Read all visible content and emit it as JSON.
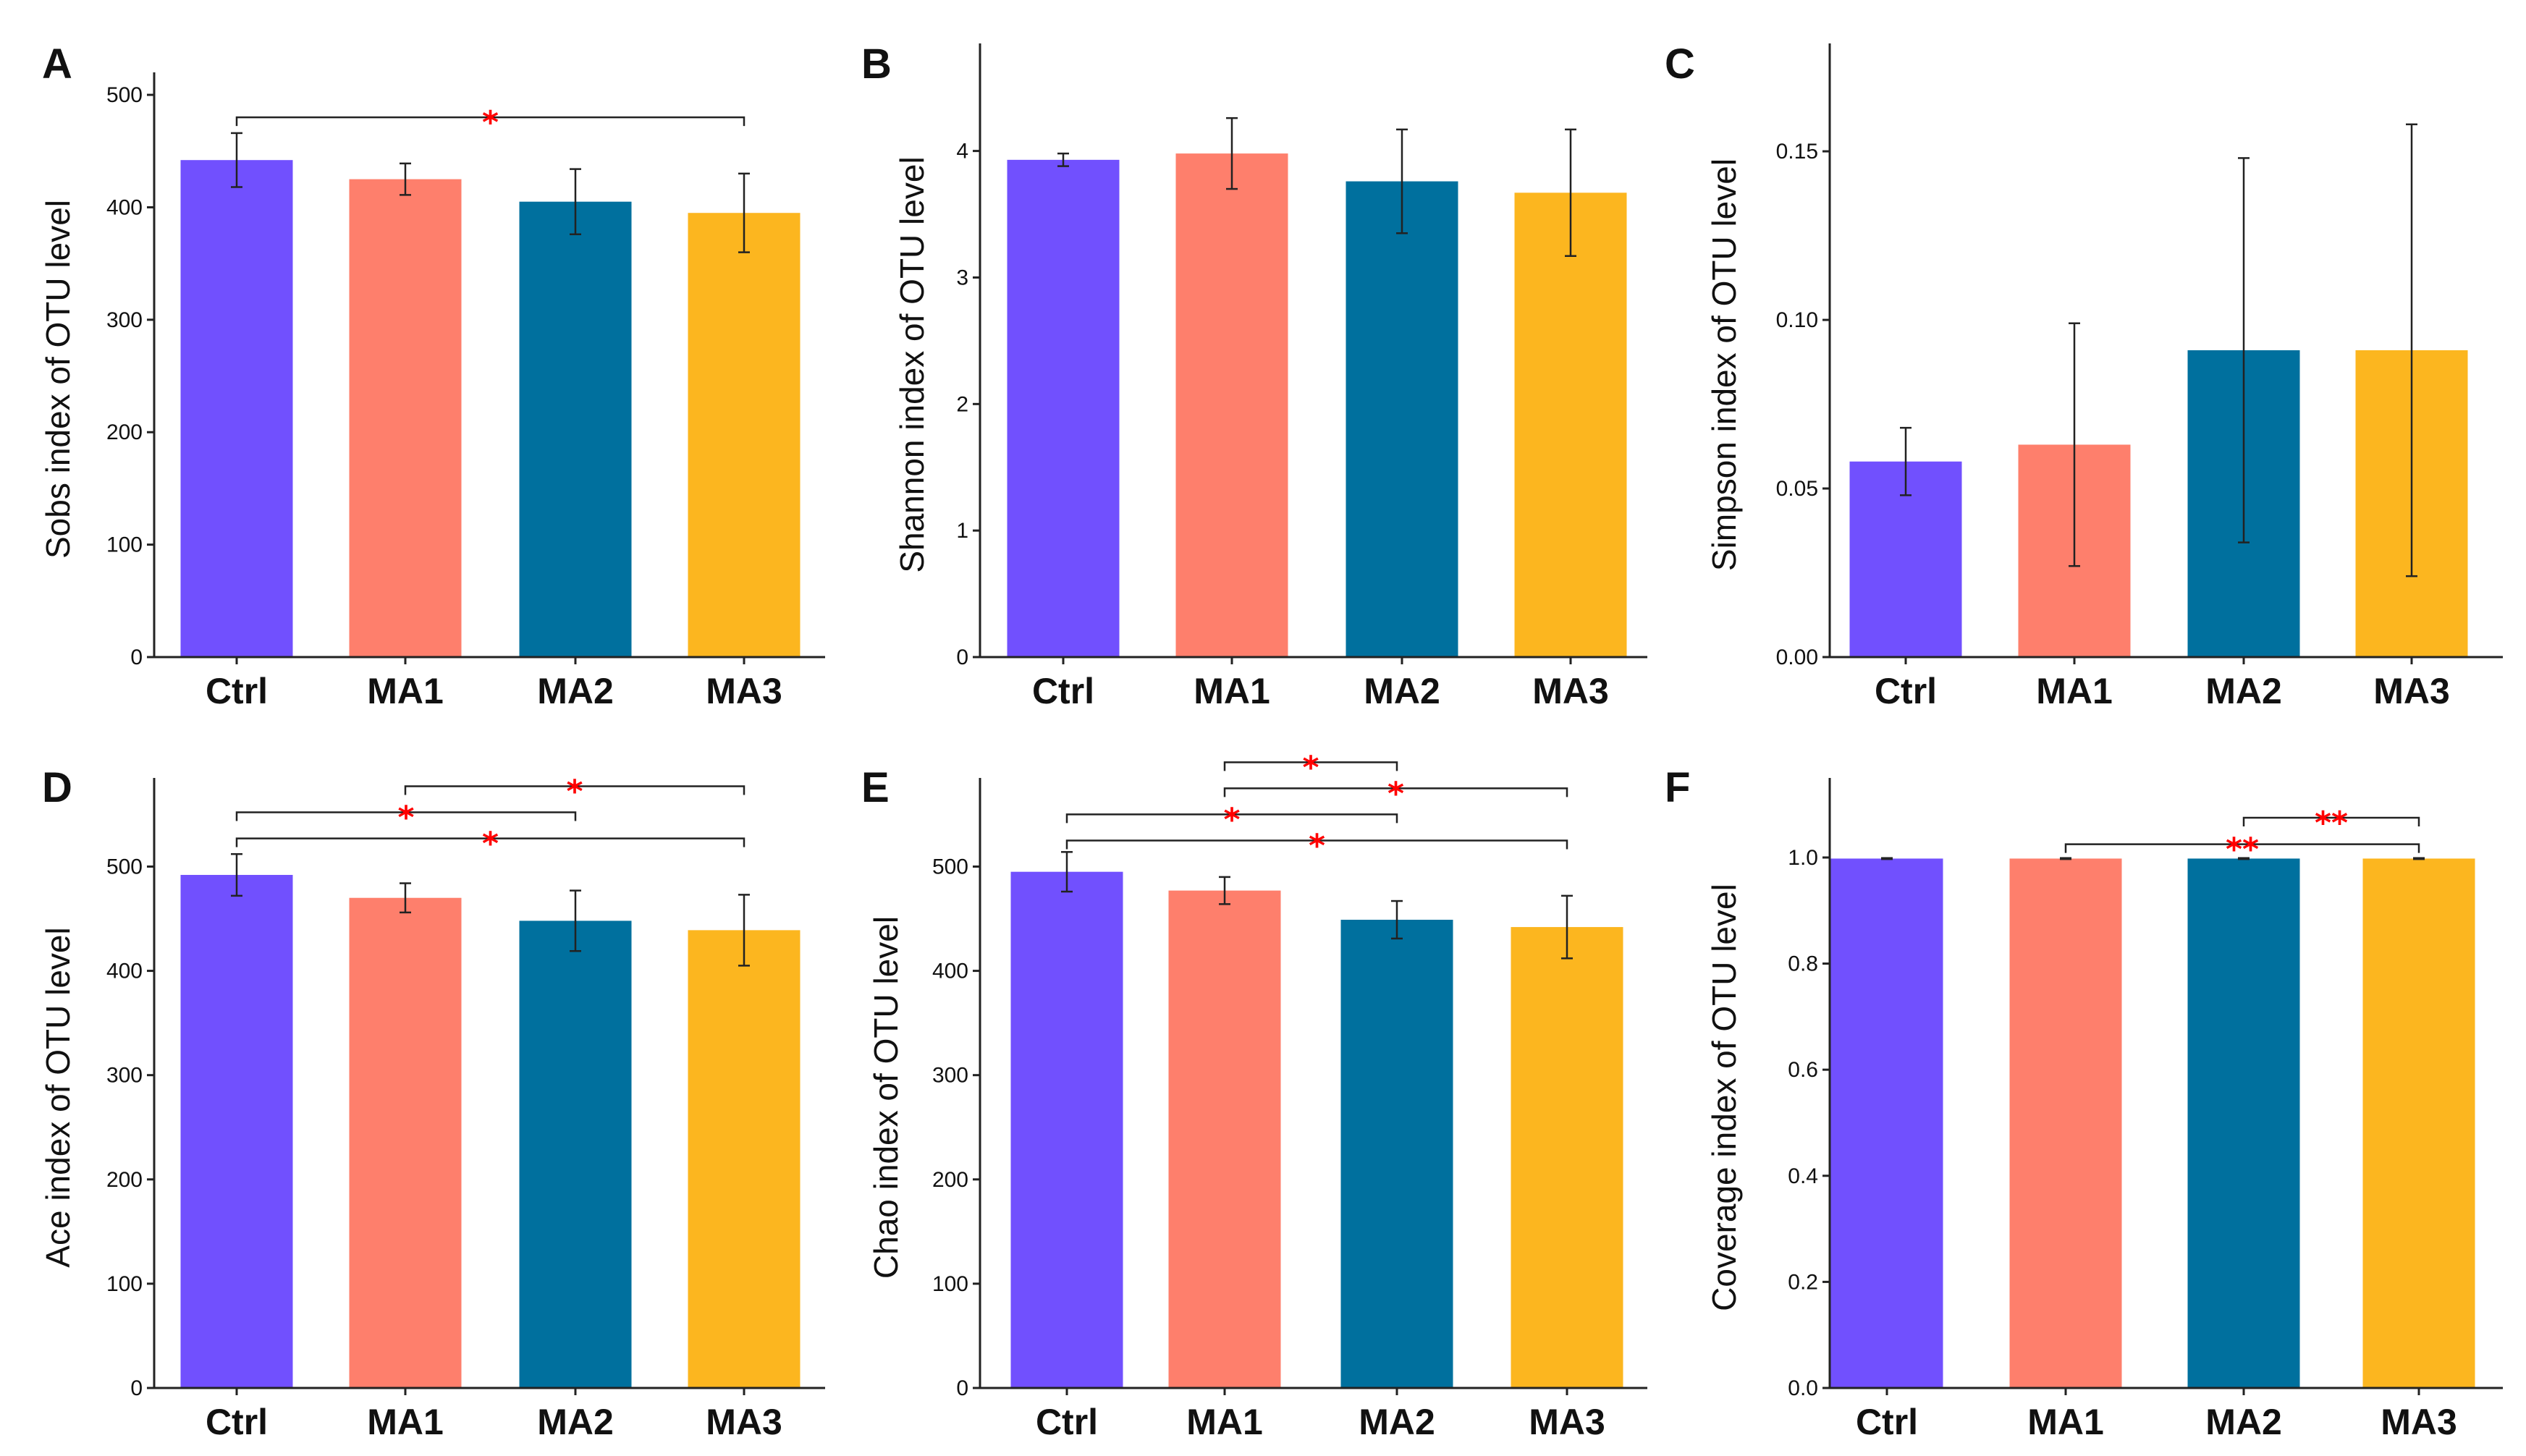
{
  "figure": {
    "star_color": "#ff0000"
  },
  "chart_data": [
    {
      "type": "bar",
      "panel": "A",
      "ylabel": "Sobs index of OTU level",
      "categories": [
        "Ctrl",
        "MA1",
        "MA2",
        "MA3"
      ],
      "values": [
        442,
        425,
        405,
        395
      ],
      "errors": [
        24,
        14,
        29,
        35
      ],
      "colors": [
        "#7150fe",
        "#fe7f6c",
        "#00709e",
        "#fcb61f"
      ],
      "ylim": [
        0,
        520
      ],
      "yticks": [
        0,
        100,
        200,
        300,
        400,
        500
      ],
      "ytick_labels": [
        "0",
        "100",
        "200",
        "300",
        "400",
        "500"
      ],
      "significance": [
        {
          "from": 0,
          "to": 3,
          "level": 480,
          "label": "*"
        }
      ]
    },
    {
      "type": "bar",
      "panel": "B",
      "ylabel": "Shannon index of OTU level",
      "categories": [
        "Ctrl",
        "MA1",
        "MA2",
        "MA3"
      ],
      "values": [
        3.93,
        3.98,
        3.76,
        3.67
      ],
      "errors": [
        0.05,
        0.28,
        0.41,
        0.5
      ],
      "colors": [
        "#7150fe",
        "#fe7f6c",
        "#00709e",
        "#fcb61f"
      ],
      "ylim": [
        0,
        4.85
      ],
      "yticks": [
        0,
        1,
        2,
        3,
        4
      ],
      "ytick_labels": [
        "0",
        "1",
        "2",
        "3",
        "4"
      ],
      "significance": []
    },
    {
      "type": "bar",
      "panel": "C",
      "ylabel": "Simpson index of OTU level",
      "categories": [
        "Ctrl",
        "MA1",
        "MA2",
        "MA3"
      ],
      "values": [
        0.058,
        0.063,
        0.091,
        0.091
      ],
      "errors": [
        0.01,
        0.036,
        0.057,
        0.067
      ],
      "colors": [
        "#7150fe",
        "#fe7f6c",
        "#00709e",
        "#fcb61f"
      ],
      "ylim": [
        0,
        0.182
      ],
      "yticks": [
        0,
        0.05,
        0.1,
        0.15
      ],
      "ytick_labels": [
        "0.00",
        "0.05",
        "0.10",
        "0.15"
      ],
      "significance": []
    },
    {
      "type": "bar",
      "panel": "D",
      "ylabel": "Ace index of OTU level",
      "categories": [
        "Ctrl",
        "MA1",
        "MA2",
        "MA3"
      ],
      "values": [
        492,
        470,
        448,
        439
      ],
      "errors": [
        20,
        14,
        29,
        34
      ],
      "colors": [
        "#7150fe",
        "#fe7f6c",
        "#00709e",
        "#fcb61f"
      ],
      "ylim": [
        0,
        585
      ],
      "yticks": [
        0,
        100,
        200,
        300,
        400,
        500
      ],
      "ytick_labels": [
        "0",
        "100",
        "200",
        "300",
        "400",
        "500"
      ],
      "significance": [
        {
          "from": 1,
          "to": 3,
          "level": 577,
          "label": "*"
        },
        {
          "from": 0,
          "to": 2,
          "level": 552,
          "label": "*"
        },
        {
          "from": 0,
          "to": 3,
          "level": 527,
          "label": "*"
        }
      ]
    },
    {
      "type": "bar",
      "panel": "E",
      "ylabel": "Chao index of OTU level",
      "categories": [
        "Ctrl",
        "MA1",
        "MA2",
        "MA3"
      ],
      "values": [
        495,
        477,
        449,
        442
      ],
      "errors": [
        19,
        13,
        18,
        30
      ],
      "colors": [
        "#7150fe",
        "#fe7f6c",
        "#00709e",
        "#fcb61f"
      ],
      "ylim": [
        0,
        585
      ],
      "yticks": [
        0,
        100,
        200,
        300,
        400,
        500
      ],
      "ytick_labels": [
        "0",
        "100",
        "200",
        "300",
        "400",
        "500"
      ],
      "significance": [
        {
          "from": 1,
          "to": 2,
          "level": 600,
          "label": "*"
        },
        {
          "from": 1,
          "to": 3,
          "level": 575,
          "label": "*"
        },
        {
          "from": 0,
          "to": 2,
          "level": 550,
          "label": "*"
        },
        {
          "from": 0,
          "to": 3,
          "level": 525,
          "label": "*"
        }
      ]
    },
    {
      "type": "bar",
      "panel": "F",
      "ylabel": "Coverage index of OTU level",
      "categories": [
        "Ctrl",
        "MA1",
        "MA2",
        "MA3"
      ],
      "values": [
        0.998,
        0.998,
        0.998,
        0.998
      ],
      "errors": [
        0.001,
        0.001,
        0.001,
        0.001
      ],
      "colors": [
        "#7150fe",
        "#fe7f6c",
        "#00709e",
        "#fcb61f"
      ],
      "ylim": [
        0,
        1.15
      ],
      "yticks": [
        0,
        0.2,
        0.4,
        0.6,
        0.8,
        1
      ],
      "ytick_labels": [
        "0.0",
        "0.2",
        "0.4",
        "0.6",
        "0.8",
        "1.0"
      ],
      "significance": [
        {
          "from": 2,
          "to": 3,
          "level": 1.075,
          "label": "**"
        },
        {
          "from": 1,
          "to": 3,
          "level": 1.025,
          "label": "**"
        }
      ]
    }
  ]
}
